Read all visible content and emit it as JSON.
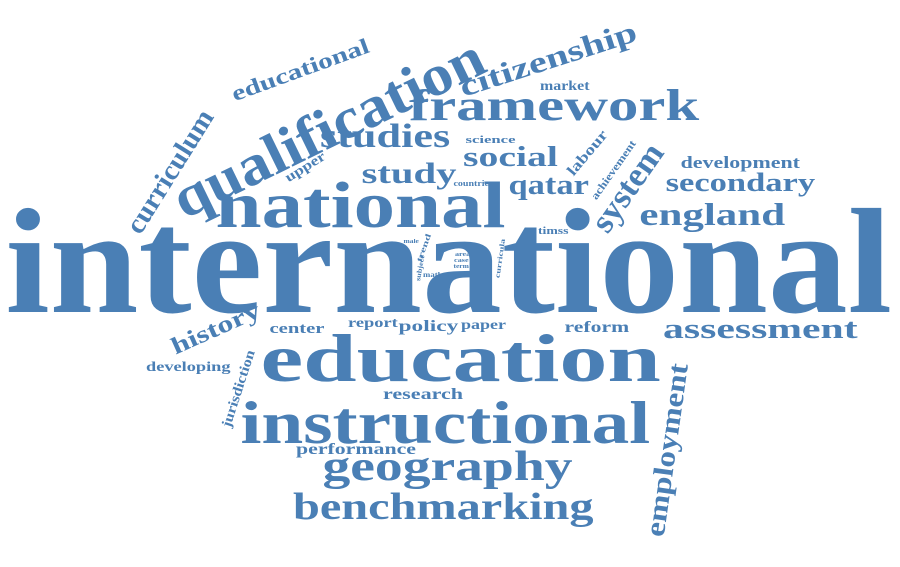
{
  "cloud": {
    "color": "#4a7fb5",
    "words": [
      "international",
      "education",
      "instructional",
      "national",
      "qualification",
      "framework",
      "geography",
      "benchmarking",
      "studies",
      "citizenship",
      "educational",
      "curriculum",
      "system",
      "england",
      "secondary",
      "assessment",
      "employment",
      "study",
      "social",
      "qatar",
      "development",
      "history",
      "reform",
      "policy",
      "report",
      "paper",
      "center",
      "developing",
      "research",
      "performance",
      "jurisdiction",
      "market",
      "labour",
      "achievement",
      "upper",
      "science",
      "countrie",
      "timss",
      "subject",
      "trend",
      "curricula",
      "math",
      "area",
      "case",
      "term",
      "male"
    ]
  }
}
